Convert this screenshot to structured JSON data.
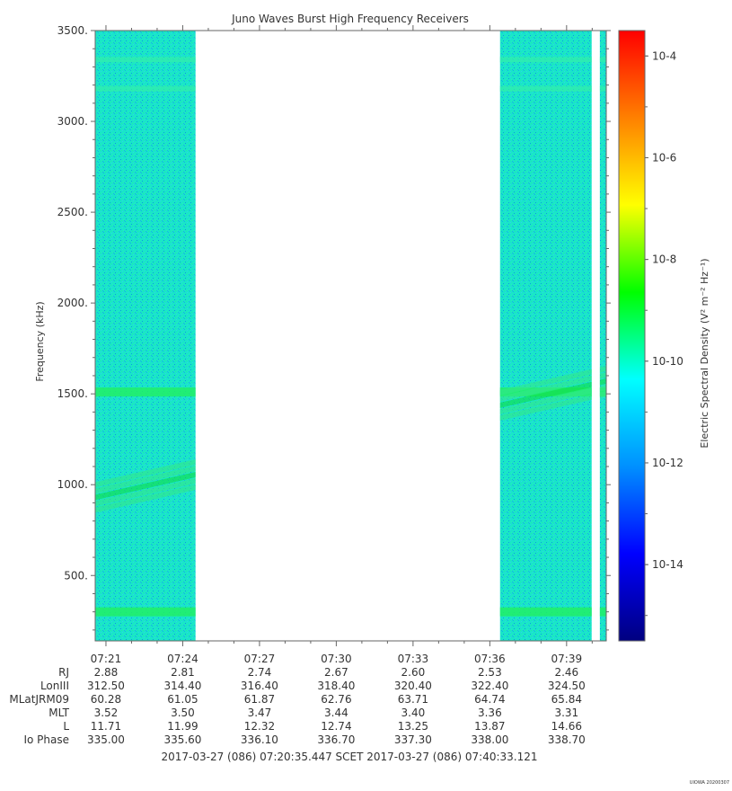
{
  "chart_data": {
    "type": "heatmap",
    "title": "Juno Waves Burst High Frequency Receivers",
    "ylabel": "Frequency (kHz)",
    "ylim": [
      140,
      3500
    ],
    "y_ticks": [
      "500.",
      "1000.",
      "1500.",
      "2000.",
      "2500.",
      "3000.",
      "3500."
    ],
    "y_tick_values": [
      500,
      1000,
      1500,
      2000,
      2500,
      3000,
      3500
    ],
    "xlim_minutes": [
      20.58,
      40.55
    ],
    "x_tick_labels": [
      "07:21",
      "07:24",
      "07:27",
      "07:30",
      "07:33",
      "07:36",
      "07:39"
    ],
    "x_tick_minutes": [
      21,
      24,
      27,
      30,
      33,
      36,
      39
    ],
    "data_segments_minutes": [
      [
        20.58,
        24.5
      ],
      [
        36.4,
        39.98
      ],
      [
        40.3,
        40.55
      ]
    ],
    "features": [
      {
        "description_of_band": "steady",
        "freq_khz": 3340
      },
      {
        "description_of_band": "steady",
        "freq_khz": 3180
      },
      {
        "description_of_band": "steady",
        "freq_khz": 1510
      },
      {
        "description_of_band": "steady",
        "freq_khz": 300
      },
      {
        "description_of_band": "rising",
        "start_minute": 20.58,
        "start_freq_khz": 930,
        "end_minute": 40.55,
        "end_freq_khz": 1570
      }
    ],
    "colorbar": {
      "label": "Electric Spectral Density (V² m⁻² Hz⁻¹)",
      "log_range": [
        -15.5,
        -3.5
      ],
      "ticks": [
        "10-4",
        "10-6",
        "10-8",
        "10-10",
        "10-12",
        "10-14"
      ],
      "tick_exponents": [
        -4,
        -6,
        -8,
        -10,
        -12,
        -14
      ],
      "colors": [
        "#000080",
        "#0000ff",
        "#0090ff",
        "#00ffff",
        "#00ff00",
        "#ffff00",
        "#ff8000",
        "#ff0000"
      ]
    },
    "ephemeris": {
      "row_labels": [
        "RJ",
        "LonIII",
        "MLatJRM09",
        "MLT",
        "L",
        "Io Phase"
      ],
      "rows": [
        [
          "2.88",
          "2.81",
          "2.74",
          "2.67",
          "2.60",
          "2.53",
          "2.46"
        ],
        [
          "312.50",
          "314.40",
          "316.40",
          "318.40",
          "320.40",
          "322.40",
          "324.50"
        ],
        [
          "60.28",
          "61.05",
          "61.87",
          "62.76",
          "63.71",
          "64.74",
          "65.84"
        ],
        [
          "3.52",
          "3.50",
          "3.47",
          "3.44",
          "3.40",
          "3.36",
          "3.31"
        ],
        [
          "11.71",
          "11.99",
          "12.32",
          "12.74",
          "13.25",
          "13.87",
          "14.66"
        ],
        [
          "335.00",
          "335.60",
          "336.10",
          "336.70",
          "337.30",
          "338.00",
          "338.70"
        ]
      ]
    },
    "time_range_label": "2017-03-27 (086) 07:20:35.447    SCET    2017-03-27 (086) 07:40:33.121",
    "footer_tag": "UIOWA 20200307"
  }
}
